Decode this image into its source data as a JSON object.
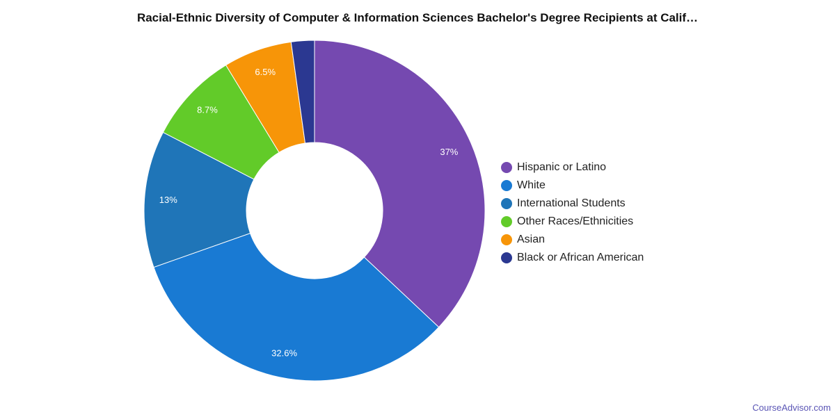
{
  "chart_data": {
    "type": "pie",
    "title": "Racial-Ethnic Diversity of Computer & Information Sciences Bachelor's Degree Recipients at Calif…",
    "donut": true,
    "start": "top",
    "direction": "clockwise",
    "legend_position": "right",
    "slices": [
      {
        "name": "Hispanic or Latino",
        "value": 37.0,
        "label": "37%",
        "color": "#7549b0"
      },
      {
        "name": "White",
        "value": 32.6,
        "label": "32.6%",
        "color": "#197ad3"
      },
      {
        "name": "International Students",
        "value": 13.0,
        "label": "13%",
        "color": "#1f75b8"
      },
      {
        "name": "Other Races/Ethnicities",
        "value": 8.7,
        "label": "8.7%",
        "color": "#62cb29"
      },
      {
        "name": "Asian",
        "value": 6.5,
        "label": "6.5%",
        "color": "#f79508"
      },
      {
        "name": "Black or African American",
        "value": 2.2,
        "label": "",
        "color": "#2b3891"
      }
    ]
  },
  "watermark": "CourseAdvisor.com"
}
